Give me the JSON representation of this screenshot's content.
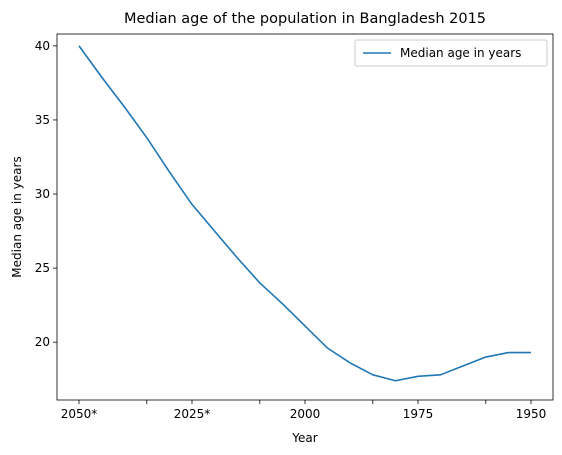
{
  "chart_data": {
    "type": "line",
    "title": "Median age of the population in Bangladesh 2015",
    "xlabel": "Year",
    "ylabel": "Median age in years",
    "x_direction": "descending",
    "x_tick_labels": [
      "2050*",
      "2025*",
      "2000",
      "1975",
      "1950"
    ],
    "y_ticks": [
      20,
      25,
      30,
      35,
      40
    ],
    "ylim": [
      16.1,
      40.8
    ],
    "grid": false,
    "legend": "top-right",
    "categories": [
      "2050*",
      "2045*",
      "2040*",
      "2035*",
      "2030*",
      "2025*",
      "2020*",
      "2015",
      "2010",
      "2005",
      "2000",
      "1995",
      "1990",
      "1985",
      "1980",
      "1975",
      "1970",
      "1965",
      "1960",
      "1955",
      "1950"
    ],
    "series": [
      {
        "name": "Median age in years",
        "color": "#1f77b4",
        "values": [
          40.0,
          37.9,
          35.9,
          33.8,
          31.5,
          29.3,
          27.5,
          25.7,
          24.0,
          22.6,
          21.1,
          19.6,
          18.6,
          17.8,
          17.4,
          17.7,
          17.8,
          18.4,
          19.0,
          19.3,
          19.3
        ]
      }
    ]
  }
}
